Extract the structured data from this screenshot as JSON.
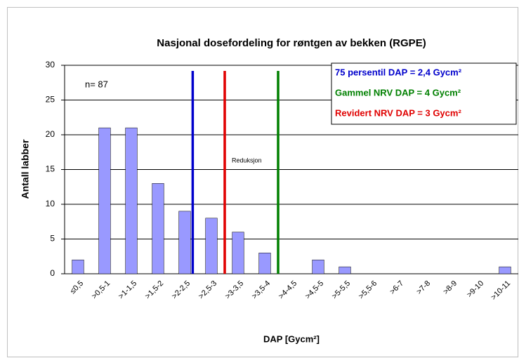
{
  "chart_data": {
    "type": "bar",
    "title": "Nasjonal dosefordeling for røntgen av bekken (RGPE)",
    "x_label": "DAP [Gycm²]",
    "y_label": "Antall labber",
    "categories": [
      "≤0,5",
      ">0,5-1",
      ">1-1,5",
      ">1,5-2",
      ">2-2,5",
      ">2,5-3",
      ">3-3,5",
      ">3,5-4",
      ">4-4,5",
      ">4,5-5",
      ">5-5,5",
      ">5,5-6",
      ">6-7",
      ">7-8",
      ">8-9",
      ">9-10",
      ">10-11"
    ],
    "values": [
      2,
      21,
      21,
      13,
      9,
      8,
      6,
      3,
      0,
      2,
      1,
      0,
      0,
      0,
      0,
      0,
      1
    ],
    "color": "#9999ff",
    "ylim": [
      0,
      30
    ],
    "yticks": [
      0,
      5,
      10,
      15,
      20,
      25,
      30
    ],
    "grid": true,
    "reference_lines": [
      {
        "label": "75 persentil DAP = 2,4 Gycm²",
        "value": 2.4,
        "color": "#0000cc"
      },
      {
        "label": "Gammel NRV DAP = 4 Gycm²",
        "value": 4,
        "color": "#008000"
      },
      {
        "label": "Revidert NRV DAP = 3 Gycm²",
        "value": 3,
        "color": "#e00000"
      }
    ],
    "bin_width": 0.5,
    "annotations": [
      "n= 87",
      "Reduksjon"
    ]
  }
}
